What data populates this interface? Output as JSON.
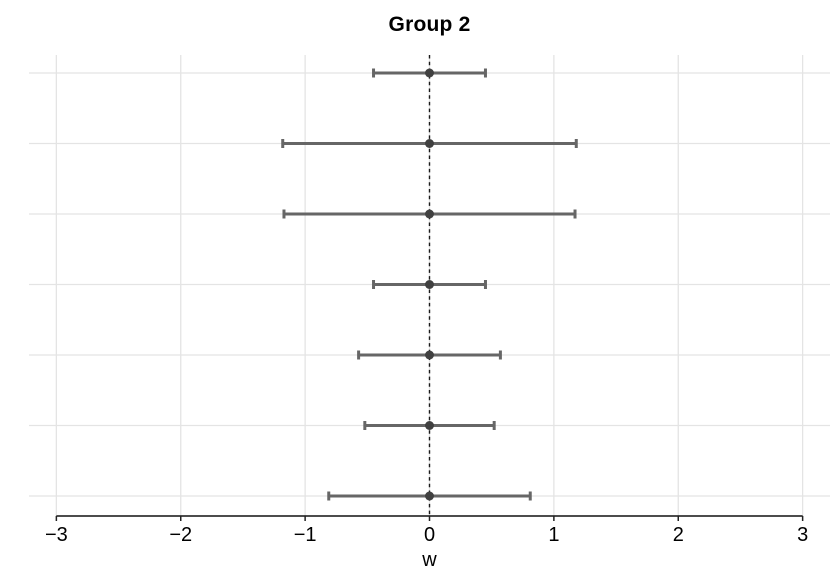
{
  "chart_data": {
    "type": "scatter",
    "variant": "horizontal-errorbar-forest",
    "title": "Group 2",
    "xlabel": "w",
    "ylabel": "",
    "xlim": [
      -3.22,
      3.22
    ],
    "x_ticks": [
      -3,
      -2,
      -1,
      0,
      1,
      2,
      3
    ],
    "x_tick_labels": [
      "−3",
      "−2",
      "−1",
      "0",
      "1",
      "2",
      "3"
    ],
    "grid": true,
    "legend": false,
    "y_axis_labels_shown": false,
    "reference_line": {
      "x": 0,
      "style": "dashed"
    },
    "points": [
      {
        "row": 1,
        "x": 0,
        "low": -0.45,
        "high": 0.45
      },
      {
        "row": 2,
        "x": 0,
        "low": -1.18,
        "high": 1.18
      },
      {
        "row": 3,
        "x": 0,
        "low": -1.17,
        "high": 1.17
      },
      {
        "row": 4,
        "x": 0,
        "low": -0.45,
        "high": 0.45
      },
      {
        "row": 5,
        "x": 0,
        "low": -0.57,
        "high": 0.57
      },
      {
        "row": 6,
        "x": 0,
        "low": -0.52,
        "high": 0.52
      },
      {
        "row": 7,
        "x": 0,
        "low": -0.81,
        "high": 0.81
      }
    ],
    "colors": {
      "errorbar": "#666666",
      "point": "#404040",
      "gridline": "#e4e4e4",
      "reference_line": "#1a1a1a",
      "axis_line": "#111111",
      "tick": "#222222",
      "text": "#000000"
    }
  }
}
